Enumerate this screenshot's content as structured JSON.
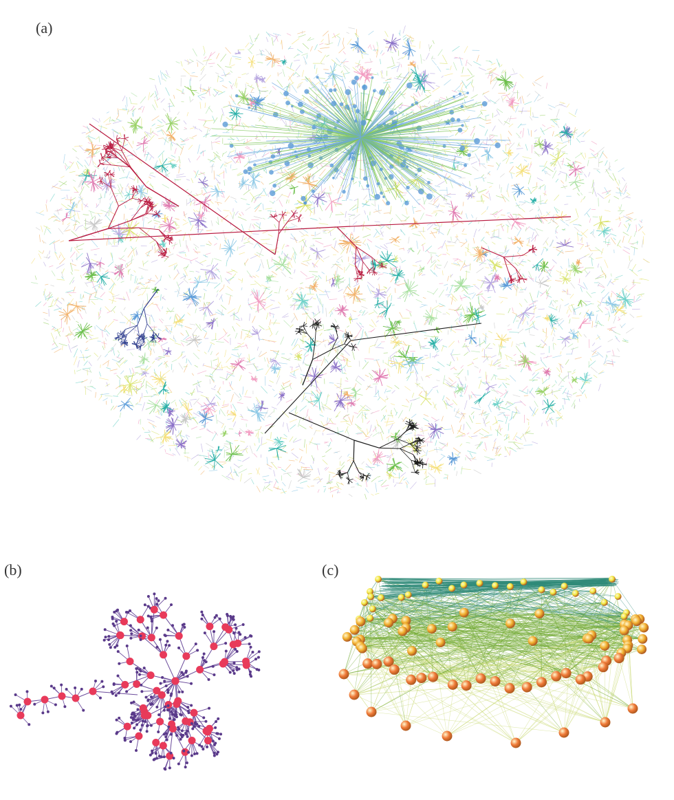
{
  "figure": {
    "panel_a": {
      "label": "(a)"
    },
    "panel_b": {
      "label": "(b)"
    },
    "panel_c": {
      "label": "(c)"
    }
  },
  "colors": {
    "background": "#ffffff",
    "a_palette": [
      "#8ec9e6",
      "#9bd36a",
      "#d9e36a",
      "#f2b26b",
      "#f29ac0",
      "#b6a6e0",
      "#6fd2c9",
      "#c8c8c8",
      "#a8e0a0",
      "#f5e07a"
    ],
    "a_hubs": [
      "#5b9bd8",
      "#6bbf4a",
      "#2ab0a8",
      "#e07ab0",
      "#8c72c8"
    ],
    "a_highlight_red": "#b8193f",
    "a_highlight_black": "#1a1a1a",
    "a_highlight_navy": "#2b3a8c",
    "b_edge": "#6a4a9a",
    "b_node_large": "#e83a5a",
    "b_node_small": "#5a3a8a",
    "c_edge_top": "#2f8a78",
    "c_edge_mid": "#6fa830",
    "c_edge_low": "#c8d870",
    "c_node_top": "#f2e840",
    "c_node_mid": "#f2b030",
    "c_node_low": "#f07a38"
  }
}
